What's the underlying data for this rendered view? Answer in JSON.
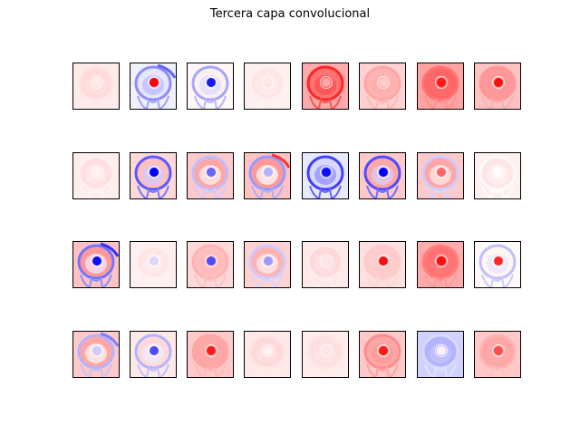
{
  "figure": {
    "title": "Tercera capa convolucional",
    "rows": 4,
    "cols": 8,
    "colormap": "bwr",
    "colors": {
      "positive": "#ff0000",
      "neutral": "#ffffff",
      "negative": "#0000ff"
    }
  },
  "feature_maps": [
    [
      {
        "bg": 0.14,
        "skull": 0.1,
        "spot": 0.08
      },
      {
        "bg": -0.1,
        "skull": -0.45,
        "spot": 1.0,
        "tint": -0.35,
        "vessel": -0.6
      },
      {
        "bg": 0.06,
        "skull": -0.35,
        "spot": -0.9
      },
      {
        "bg": 0.1,
        "skull": 0.06,
        "spot": 0.1
      },
      {
        "bg": 0.55,
        "skull": 0.85,
        "spot": 0.35
      },
      {
        "bg": 0.3,
        "skull": 0.35,
        "spot": 0.2
      },
      {
        "bg": 0.6,
        "skull": 0.55,
        "spot": 0.9
      },
      {
        "bg": 0.4,
        "skull": 0.4,
        "spot": 0.95
      }
    ],
    [
      {
        "bg": 0.12,
        "skull": 0.06,
        "spot": 0.05
      },
      {
        "bg": 0.25,
        "skull": -0.65,
        "spot": -1.0
      },
      {
        "bg": 0.35,
        "skull": -0.25,
        "spot": -0.6
      },
      {
        "bg": 0.4,
        "skull": -0.4,
        "spot": -0.3,
        "vessel": 0.8
      },
      {
        "bg": -0.15,
        "skull": -0.75,
        "spot": -0.95
      },
      {
        "bg": 0.35,
        "skull": -0.7,
        "spot": -1.0
      },
      {
        "bg": 0.35,
        "skull": -0.2,
        "spot": 0.6
      },
      {
        "bg": 0.1,
        "skull": 0.02,
        "spot": 0.0
      }
    ],
    [
      {
        "bg": 0.4,
        "skull": -0.55,
        "spot": -0.95,
        "vessel": -0.8
      },
      {
        "bg": 0.1,
        "skull": 0.06,
        "spot": -0.15
      },
      {
        "bg": 0.25,
        "skull": 0.3,
        "spot": -0.7
      },
      {
        "bg": 0.3,
        "skull": -0.2,
        "spot": -0.4
      },
      {
        "bg": 0.15,
        "skull": 0.08,
        "spot": 0.1
      },
      {
        "bg": 0.2,
        "skull": 0.2,
        "spot": 0.95
      },
      {
        "bg": 0.55,
        "skull": 0.5,
        "spot": 0.95
      },
      {
        "bg": 0.04,
        "skull": -0.25,
        "spot": 0.85
      }
    ],
    [
      {
        "bg": 0.35,
        "skull": -0.3,
        "spot": -0.2,
        "vessel": -0.5
      },
      {
        "bg": 0.15,
        "skull": -0.3,
        "spot": -0.7
      },
      {
        "bg": 0.35,
        "skull": 0.35,
        "spot": 0.9
      },
      {
        "bg": 0.15,
        "skull": 0.1,
        "spot": 0.05
      },
      {
        "bg": 0.12,
        "skull": 0.1,
        "spot": 0.1
      },
      {
        "bg": 0.35,
        "skull": 0.45,
        "spot": 0.9
      },
      {
        "bg": -0.3,
        "skull": -0.15,
        "spot": 0.05,
        "tint": -0.3
      },
      {
        "bg": 0.35,
        "skull": 0.3,
        "spot": 0.7
      }
    ]
  ]
}
